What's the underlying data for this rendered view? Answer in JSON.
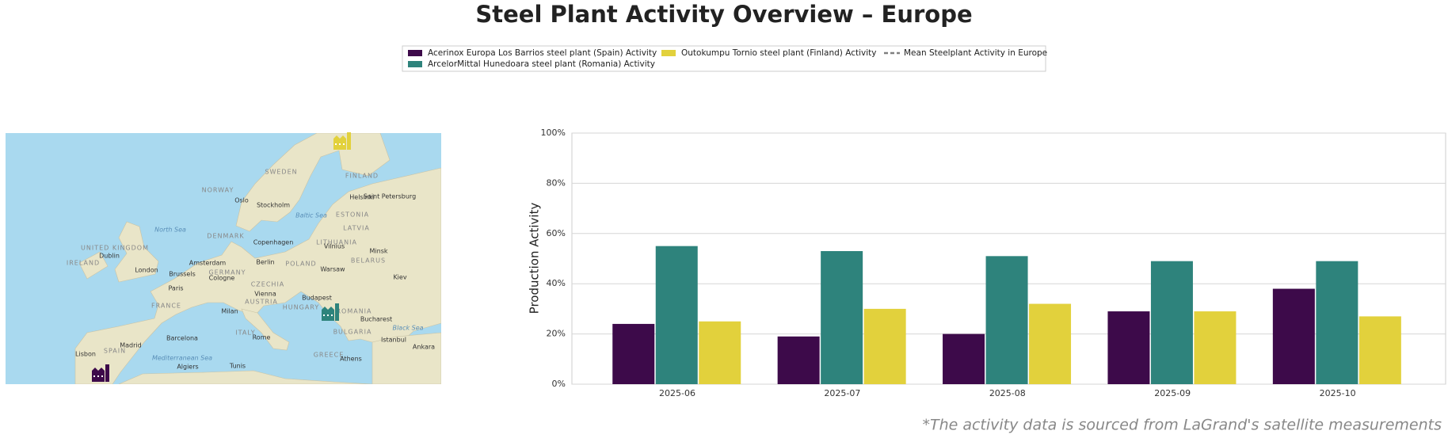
{
  "chart_data": {
    "type": "bar",
    "title": "Steel Plant Activity Overview – Europe",
    "ylabel": "Production Activity",
    "footnote": "*The activity data is sourced from LaGrand's satellite measurements",
    "categories": [
      "2025-06",
      "2025-07",
      "2025-08",
      "2025-09",
      "2025-10"
    ],
    "series": [
      {
        "name": "Acerinox Europa Los Barrios steel plant (Spain) Activity",
        "color": "#3d0a4a",
        "values": [
          24,
          19,
          20,
          29,
          38
        ]
      },
      {
        "name": "ArcelorMittal Hunedoara steel plant (Romania) Activity",
        "color": "#2e837c",
        "values": [
          55,
          53,
          51,
          49,
          49
        ]
      },
      {
        "name": "Outokumpu Tornio steel plant (Finland) Activity",
        "color": "#e2d13c",
        "values": [
          25,
          30,
          32,
          29,
          27
        ]
      }
    ],
    "mean_series": {
      "name": "Mean Steelplant Activity in Europe",
      "color": "#808080"
    },
    "ylim": [
      0,
      100
    ],
    "yticks": [
      {
        "value": 0,
        "label": "0%"
      },
      {
        "value": 20,
        "label": "20%"
      },
      {
        "value": 40,
        "label": "40%"
      },
      {
        "value": 60,
        "label": "60%"
      },
      {
        "value": 80,
        "label": "80%"
      },
      {
        "value": 100,
        "label": "100%"
      }
    ],
    "grid": true,
    "map": {
      "labels": [
        "SWEDEN",
        "FINLAND",
        "NORWAY",
        "Oslo",
        "Stockholm",
        "Helsinki",
        "Saint Petersburg",
        "ESTONIA",
        "LATVIA",
        "DENMARK",
        "Copenhagen",
        "LITHUANIA",
        "Vilnius",
        "Minsk",
        "UNITED KINGDOM",
        "IRELAND",
        "Dublin",
        "London",
        "Amsterdam",
        "Berlin",
        "POLAND",
        "Warsaw",
        "BELARUS",
        "Brussels",
        "GERMANY",
        "Cologne",
        "Kiev",
        "Paris",
        "CZECHIA",
        "FRANCE",
        "Vienna",
        "AUSTRIA",
        "Budapest",
        "HUNGARY",
        "ROMANIA",
        "Milan",
        "ITALY",
        "BULGARIA",
        "Bucharest",
        "Barcelona",
        "Rome",
        "Istanbul",
        "Madrid",
        "SPAIN",
        "Lisbon",
        "GREECE",
        "Ankara",
        "Athens",
        "Algiers",
        "Tunis"
      ],
      "water_labels": [
        "North Sea",
        "Baltic Sea",
        "Black Sea",
        "Mediterranean Sea"
      ]
    }
  }
}
